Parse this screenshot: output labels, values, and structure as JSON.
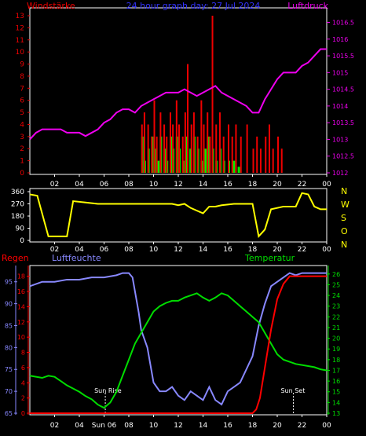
{
  "panel1": {
    "title": "24 hour graph day:  27 Jul 2024",
    "left_label": "Windstärke",
    "right_label": "Luftdruck",
    "left_ticks": [
      "0",
      "1",
      "2",
      "3",
      "4",
      "5",
      "6",
      "7",
      "8",
      "9",
      "10",
      "11",
      "12",
      "13"
    ],
    "right_ticks": [
      "1012",
      "1012.5",
      "1013",
      "1013.5",
      "1014",
      "1014.5",
      "1015",
      "1015.5",
      "1016",
      "1016.5"
    ],
    "hour_ticks": [
      "02",
      "04",
      "06",
      "08",
      "10",
      "12",
      "14",
      "16",
      "18",
      "20",
      "22",
      "00"
    ]
  },
  "panel2": {
    "left_ticks": [
      "0",
      "90",
      "180",
      "270",
      "360"
    ],
    "compass": [
      "N",
      "W",
      "S",
      "O",
      "N"
    ],
    "hour_ticks": [
      "02",
      "04",
      "06",
      "08",
      "10",
      "12",
      "14",
      "16",
      "18",
      "20",
      "22",
      "00"
    ]
  },
  "panel3": {
    "regen_label": "Regen",
    "humidity_label": "Luftfeuchte",
    "temp_label": "Temperatur",
    "regen_ticks": [
      "0",
      "2",
      "4",
      "6",
      "8",
      "10",
      "12",
      "14",
      "16",
      "18"
    ],
    "humidity_ticks": [
      "65",
      "70",
      "75",
      "80",
      "85",
      "90",
      "95"
    ],
    "temp_ticks": [
      "13",
      "14",
      "15",
      "16",
      "17",
      "18",
      "19",
      "20",
      "21",
      "22",
      "23",
      "24",
      "25",
      "26"
    ],
    "sun_rise_label": "Sun Rise",
    "sun_set_label": "Sun Set",
    "hour_ticks": [
      "02",
      "04",
      "Sun 06",
      "08",
      "10",
      "12",
      "14",
      "16",
      "18",
      "20",
      "22",
      "00"
    ]
  },
  "colors": {
    "wind_avg": "#00ee00",
    "wind_gust": "#ee0000",
    "pressure": "#ee00ee",
    "direction": "#ffff00",
    "humidity": "#8888ff",
    "temperature": "#00dd00",
    "rain": "#ff0000",
    "axis": "#ffffff",
    "title": "#3333ff",
    "sun_lines": "#ffffff"
  },
  "chart_data": [
    {
      "type": "line",
      "name": "wind-pressure",
      "x_unit": "hours",
      "xlim": [
        0,
        24
      ],
      "ylim_left": [
        0,
        13
      ],
      "ylim_right": [
        1012,
        1016.7
      ],
      "pressure": {
        "x": [
          0,
          0.5,
          1,
          1.5,
          2,
          2.5,
          3,
          3.5,
          4,
          4.5,
          5,
          5.5,
          6,
          6.5,
          7,
          7.5,
          8,
          8.5,
          9,
          9.5,
          10,
          10.5,
          11,
          11.5,
          12,
          12.5,
          13,
          13.5,
          14,
          14.5,
          15,
          15.5,
          16,
          16.5,
          17,
          17.5,
          18,
          18.5,
          19,
          19.5,
          20,
          20.5,
          21,
          21.5,
          22,
          22.5,
          23,
          23.5,
          24
        ],
        "y": [
          1013.0,
          1013.2,
          1013.3,
          1013.3,
          1013.3,
          1013.3,
          1013.2,
          1013.2,
          1013.2,
          1013.1,
          1013.2,
          1013.3,
          1013.5,
          1013.6,
          1013.8,
          1013.9,
          1013.9,
          1013.8,
          1014.0,
          1014.1,
          1014.2,
          1014.3,
          1014.4,
          1014.4,
          1014.4,
          1014.5,
          1014.4,
          1014.3,
          1014.4,
          1014.5,
          1014.6,
          1014.4,
          1014.3,
          1014.2,
          1014.1,
          1014.0,
          1013.8,
          1013.8,
          1014.2,
          1014.5,
          1014.8,
          1015.0,
          1015.0,
          1015.0,
          1015.2,
          1015.3,
          1015.5,
          1015.7,
          1015.7
        ]
      },
      "wind_avg": {
        "x": [
          9.0,
          9.2,
          9.5,
          9.8,
          10.0,
          10.3,
          10.5,
          10.8,
          11.0,
          11.3,
          11.5,
          11.8,
          12.0,
          12.3,
          12.6,
          12.9,
          13.2,
          13.5,
          13.8,
          14.1,
          14.4,
          14.7,
          15.0,
          15.3,
          15.6,
          16.0,
          16.4,
          16.8
        ],
        "y": [
          3,
          1,
          2,
          3,
          2,
          1,
          3,
          2,
          1,
          3,
          2,
          3,
          2,
          1,
          3,
          2,
          3,
          2,
          1,
          2,
          3,
          2,
          1,
          2,
          1,
          1,
          1,
          0.5
        ]
      },
      "wind_gust": {
        "x": [
          9.0,
          9.2,
          9.5,
          9.8,
          10.0,
          10.2,
          10.5,
          10.8,
          11.0,
          11.3,
          11.5,
          11.8,
          12.0,
          12.3,
          12.5,
          12.7,
          13.0,
          13.2,
          13.5,
          13.8,
          14.0,
          14.3,
          14.5,
          14.7,
          15.0,
          15.3,
          15.6,
          16.0,
          16.3,
          16.6,
          17.0,
          17.5,
          18.0,
          18.3,
          18.6,
          19.0,
          19.3,
          19.6,
          20.0,
          20.3
        ],
        "y": [
          4,
          5,
          4,
          3,
          6,
          3,
          5,
          4,
          3,
          5,
          4,
          6,
          4,
          3,
          5,
          9,
          4,
          5,
          3,
          6,
          4,
          5,
          3,
          13,
          4,
          5,
          3,
          4,
          3,
          4,
          3,
          4,
          2,
          3,
          2,
          3,
          4,
          2,
          3,
          2
        ]
      }
    },
    {
      "type": "line",
      "name": "wind-direction",
      "x_unit": "hours",
      "xlim": [
        0,
        24
      ],
      "ylim": [
        0,
        360
      ],
      "x": [
        0,
        0.6,
        1.5,
        2.5,
        3.0,
        3.5,
        4.5,
        5.5,
        6.5,
        7.5,
        8.5,
        9.5,
        10.5,
        11.5,
        12.0,
        12.5,
        13.0,
        13.5,
        14.0,
        14.5,
        15.0,
        15.5,
        16.5,
        17.5,
        18.0,
        18.5,
        19.0,
        19.5,
        20.5,
        21.5,
        22.0,
        22.5,
        23.0,
        23.5,
        24
      ],
      "y": [
        340,
        330,
        30,
        30,
        30,
        290,
        280,
        270,
        270,
        270,
        270,
        270,
        270,
        270,
        260,
        270,
        240,
        220,
        200,
        250,
        250,
        260,
        270,
        270,
        270,
        30,
        80,
        230,
        250,
        250,
        350,
        340,
        250,
        230,
        230
      ]
    },
    {
      "type": "line",
      "name": "rain-humidity-temperature",
      "x_unit": "hours",
      "xlim": [
        0,
        24
      ],
      "ylim_regen": [
        0,
        19
      ],
      "ylim_humidity": [
        65,
        98
      ],
      "ylim_temp": [
        13,
        26.5
      ],
      "humidity": {
        "x": [
          0,
          1,
          2,
          3,
          4,
          5,
          6,
          7,
          7.5,
          8,
          8.3,
          8.8,
          9,
          9.5,
          10,
          10.5,
          11,
          11.5,
          12,
          12.5,
          13,
          13.5,
          14,
          14.5,
          15,
          15.5,
          16,
          16.5,
          17,
          17.5,
          18,
          18.5,
          19,
          19.5,
          20,
          20.5,
          21,
          21.5,
          22,
          22.5,
          23,
          23.5,
          24
        ],
        "y": [
          94,
          95,
          95,
          95.5,
          95.5,
          96,
          96,
          96.5,
          97,
          97,
          96,
          88,
          84,
          80,
          72,
          70,
          70,
          71,
          69,
          68,
          70,
          69,
          68,
          71,
          68,
          67,
          70,
          71,
          72,
          75,
          78,
          85,
          90,
          94,
          95,
          96,
          97,
          96.5,
          97,
          97,
          97,
          97,
          97
        ]
      },
      "temperature": {
        "x": [
          0,
          0.5,
          1,
          1.5,
          2,
          2.5,
          3,
          3.5,
          4,
          4.5,
          5,
          5.5,
          6,
          6.5,
          7,
          7.5,
          8,
          8.5,
          9,
          9.5,
          10,
          10.5,
          11,
          11.5,
          12,
          12.5,
          13,
          13.5,
          14,
          14.5,
          15,
          15.5,
          16,
          16.5,
          17,
          17.5,
          18,
          18.5,
          19,
          19.5,
          20,
          20.5,
          21,
          21.5,
          22,
          22.5,
          23,
          23.5,
          24
        ],
        "y": [
          16.5,
          16.4,
          16.3,
          16.5,
          16.4,
          16.0,
          15.6,
          15.3,
          15.0,
          14.6,
          14.3,
          13.8,
          13.5,
          14.0,
          15.0,
          16.5,
          18.0,
          19.5,
          20.5,
          21.5,
          22.5,
          23.0,
          23.3,
          23.5,
          23.5,
          23.8,
          24.0,
          24.2,
          23.8,
          23.5,
          23.8,
          24.2,
          24.0,
          23.5,
          23.0,
          22.5,
          22.0,
          21.5,
          20.5,
          19.5,
          18.5,
          18.0,
          17.8,
          17.6,
          17.5,
          17.4,
          17.3,
          17.1,
          17.0
        ]
      },
      "rain": {
        "x": [
          0,
          16,
          17,
          18,
          18.3,
          18.6,
          19,
          19.5,
          20,
          20.5,
          21,
          21.5,
          22,
          22.5,
          23,
          23.5,
          24
        ],
        "y": [
          0,
          0,
          0,
          0,
          0.5,
          2,
          6,
          11,
          15,
          17,
          18,
          18,
          18,
          18,
          18,
          18,
          18
        ]
      },
      "sun_rise_hour": 6.1,
      "sun_set_hour": 21.3
    }
  ]
}
